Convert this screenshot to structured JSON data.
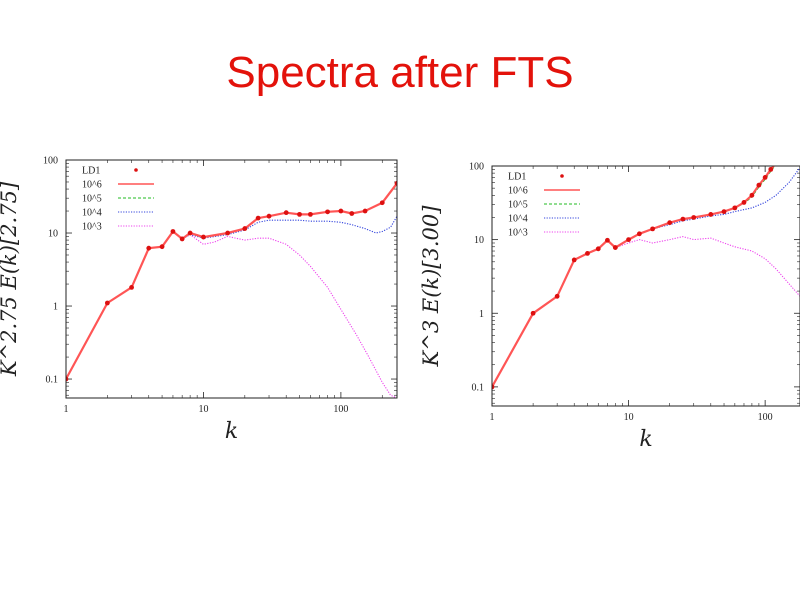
{
  "page": {
    "title": "Spectra after FTS"
  },
  "chart_data": [
    {
      "type": "line",
      "ylabel": "K^2.75 E(k)[2.75]",
      "xlabel": "k",
      "xscale": "log",
      "yscale": "log",
      "xlim": [
        1,
        256
      ],
      "ylim": [
        0.055,
        100
      ],
      "xticks": [
        1,
        10,
        100
      ],
      "xtick_labels": [
        "1",
        "10",
        "100"
      ],
      "yticks": [
        0.1,
        1,
        10,
        100
      ],
      "ytick_labels": [
        "0.1",
        "1",
        "10",
        "100"
      ],
      "legend": "top-left",
      "series": [
        {
          "name": "LD1",
          "color": "#dd1010",
          "style": "points",
          "x": [
            1,
            2,
            3,
            4,
            5,
            6,
            7,
            8,
            10,
            15,
            20,
            25,
            30,
            40,
            50,
            60,
            80,
            100,
            120,
            150,
            200,
            256
          ],
          "y": [
            0.1,
            1.1,
            1.8,
            6.2,
            6.5,
            10.5,
            8.3,
            10,
            8.8,
            10,
            11.5,
            16,
            17,
            19,
            18,
            18,
            19.5,
            20,
            18.5,
            20,
            26,
            48
          ]
        },
        {
          "name": "10^6",
          "color": "#ff5555",
          "style": "solid",
          "x": [
            1,
            2,
            3,
            4,
            5,
            6,
            7,
            8,
            10,
            15,
            20,
            25,
            30,
            40,
            50,
            60,
            80,
            100,
            120,
            150,
            200,
            256
          ],
          "y": [
            0.1,
            1.1,
            1.8,
            6.2,
            6.5,
            10.5,
            8.3,
            10,
            8.8,
            10,
            11.5,
            16,
            17,
            19,
            18,
            18,
            19.5,
            20,
            18.5,
            20,
            26,
            48
          ]
        },
        {
          "name": "10^5",
          "color": "#22bb22",
          "style": "dashed",
          "x": [
            1,
            2,
            3,
            4,
            5,
            6,
            7,
            8,
            10,
            15,
            20,
            25,
            30,
            40,
            50,
            60,
            80,
            100,
            120,
            150,
            200,
            256
          ],
          "y": [
            0.1,
            1.1,
            1.8,
            6.2,
            6.5,
            10.5,
            8.3,
            10,
            8.8,
            10,
            11.5,
            16,
            17,
            19,
            18,
            18,
            19.5,
            20,
            18.5,
            20,
            26,
            46
          ]
        },
        {
          "name": "10^4",
          "color": "#3344dd",
          "style": "dotted",
          "x": [
            1,
            2,
            3,
            4,
            5,
            6,
            7,
            8,
            10,
            15,
            20,
            25,
            30,
            40,
            50,
            60,
            80,
            100,
            120,
            150,
            180,
            200,
            230,
            256
          ],
          "y": [
            0.1,
            1.1,
            1.8,
            6.2,
            6.5,
            10.5,
            8.3,
            9.5,
            8.5,
            9.5,
            11,
            14,
            15,
            15,
            15,
            14.5,
            14.5,
            14,
            13,
            11.5,
            10,
            10.5,
            12,
            17
          ]
        },
        {
          "name": "10^3",
          "color": "#ee44ee",
          "style": "dotted",
          "x": [
            1,
            2,
            3,
            4,
            5,
            6,
            7,
            8,
            10,
            12,
            15,
            20,
            25,
            30,
            40,
            50,
            60,
            80,
            100,
            130,
            160,
            200,
            230,
            256
          ],
          "y": [
            0.1,
            1.1,
            1.8,
            6.2,
            6.5,
            10.5,
            8.3,
            9.5,
            7,
            7.5,
            9,
            8,
            8.5,
            8.5,
            7,
            5,
            3.5,
            1.8,
            0.9,
            0.4,
            0.2,
            0.09,
            0.06,
            0.055
          ]
        }
      ]
    },
    {
      "type": "line",
      "ylabel": "K^3 E(k)[3.00]",
      "xlabel": "k",
      "xscale": "log",
      "yscale": "log",
      "xlim": [
        1,
        180
      ],
      "ylim": [
        0.055,
        100
      ],
      "xticks": [
        1,
        10,
        100
      ],
      "xtick_labels": [
        "1",
        "10",
        "100"
      ],
      "yticks": [
        0.1,
        1,
        10,
        100
      ],
      "ytick_labels": [
        "0.1",
        "1",
        "10",
        "100"
      ],
      "legend": "top-left",
      "series": [
        {
          "name": "LD1",
          "color": "#dd1010",
          "style": "points",
          "x": [
            1,
            2,
            3,
            4,
            5,
            6,
            7,
            8,
            10,
            12,
            15,
            20,
            25,
            30,
            40,
            50,
            60,
            70,
            80,
            90,
            100,
            110,
            120
          ],
          "y": [
            0.1,
            1,
            1.7,
            5.3,
            6.5,
            7.5,
            9.8,
            7.8,
            10,
            12,
            14,
            17,
            19,
            20,
            22,
            24,
            27,
            32,
            40,
            55,
            70,
            90,
            110
          ]
        },
        {
          "name": "10^6",
          "color": "#ff5555",
          "style": "solid",
          "x": [
            1,
            2,
            3,
            4,
            5,
            6,
            7,
            8,
            10,
            12,
            15,
            20,
            25,
            30,
            40,
            50,
            60,
            70,
            80,
            90,
            100,
            110,
            120
          ],
          "y": [
            0.1,
            1,
            1.7,
            5.3,
            6.5,
            7.5,
            9.8,
            7.8,
            10,
            12,
            14,
            17,
            19,
            20,
            22,
            24,
            27,
            32,
            40,
            55,
            70,
            90,
            110
          ]
        },
        {
          "name": "10^5",
          "color": "#22bb22",
          "style": "dashed",
          "x": [
            1,
            2,
            3,
            4,
            5,
            6,
            7,
            8,
            10,
            12,
            15,
            20,
            25,
            30,
            40,
            50,
            60,
            70,
            80,
            90,
            100,
            110,
            120
          ],
          "y": [
            0.1,
            1,
            1.7,
            5.3,
            6.5,
            7.5,
            9.8,
            7.8,
            10,
            12,
            14,
            17,
            19,
            20,
            22,
            24,
            27,
            31,
            38,
            52,
            66,
            85,
            105
          ]
        },
        {
          "name": "10^4",
          "color": "#3344dd",
          "style": "dotted",
          "x": [
            1,
            2,
            3,
            4,
            5,
            6,
            7,
            8,
            10,
            12,
            15,
            20,
            25,
            30,
            40,
            50,
            60,
            80,
            100,
            120,
            150,
            180
          ],
          "y": [
            0.1,
            1,
            1.7,
            5.3,
            6.5,
            7.5,
            9.8,
            7.8,
            10,
            12,
            14,
            16,
            18,
            19,
            21,
            22,
            24,
            27,
            32,
            40,
            60,
            95
          ]
        },
        {
          "name": "10^3",
          "color": "#ee44ee",
          "style": "dotted",
          "x": [
            1,
            2,
            3,
            4,
            5,
            6,
            7,
            8,
            10,
            12,
            15,
            20,
            25,
            30,
            40,
            50,
            60,
            80,
            100,
            120,
            150,
            180
          ],
          "y": [
            0.1,
            1,
            1.7,
            5.3,
            6.5,
            7.5,
            9.8,
            7.8,
            9,
            10,
            9,
            10,
            11,
            10,
            10.5,
            9,
            8,
            7,
            5.5,
            4,
            2.5,
            1.7
          ]
        }
      ]
    }
  ]
}
